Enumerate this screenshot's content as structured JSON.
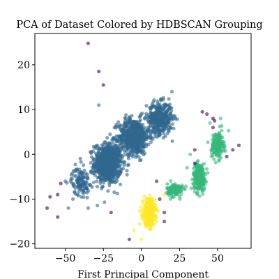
{
  "chart_data": {
    "type": "scatter",
    "title": "PCA of Dataset Colored by HDBSCAN Grouping",
    "xlabel": "First Principal Component",
    "ylabel": "",
    "xlim": [
      -70,
      72
    ],
    "ylim": [
      -21,
      27
    ],
    "xticks": [
      -50,
      -25,
      0,
      25,
      50
    ],
    "yticks": [
      -20,
      -10,
      0,
      10,
      20
    ],
    "grid": false,
    "legend": "none",
    "series": [
      {
        "color": "#31688e",
        "clusters": [
          {
            "center": [
              -22,
              -2
            ],
            "spread": [
              9,
              4.5
            ],
            "count": 700
          },
          {
            "center": [
              -5,
              4
            ],
            "spread": [
              10,
              4
            ],
            "count": 600
          },
          {
            "center": [
              12,
              8
            ],
            "spread": [
              8,
              3.5
            ],
            "count": 400
          },
          {
            "center": [
              -40,
              -6
            ],
            "spread": [
              6,
              3
            ],
            "count": 120
          }
        ],
        "points": [
          [
            -45,
            -10
          ],
          [
            -42,
            -9
          ],
          [
            -48,
            -12
          ],
          [
            -35,
            -12
          ],
          [
            -28,
            11
          ],
          [
            20,
            14
          ],
          [
            -50,
            -6
          ]
        ]
      },
      {
        "color": "#35b779",
        "clusters": [
          {
            "center": [
              22,
              -8
            ],
            "spread": [
              5,
              1.5
            ],
            "count": 150
          },
          {
            "center": [
              38,
              -5
            ],
            "spread": [
              4,
              3
            ],
            "count": 250
          },
          {
            "center": [
              50,
              2
            ],
            "spread": [
              4,
              3
            ],
            "count": 150
          }
        ],
        "points": [
          [
            45,
            7
          ],
          [
            52,
            8
          ],
          [
            32,
            0
          ],
          [
            30,
            -3
          ]
        ]
      },
      {
        "color": "#fde725",
        "clusters": [
          {
            "center": [
              5,
              -13
            ],
            "spread": [
              4,
              3
            ],
            "count": 350
          }
        ],
        "points": [
          [
            -5,
            -17
          ],
          [
            15,
            -9
          ],
          [
            0,
            -19
          ]
        ]
      },
      {
        "color": "#440154",
        "clusters": [],
        "points": [
          [
            -35,
            24.8
          ],
          [
            -28,
            18.5
          ],
          [
            -25,
            15.5
          ],
          [
            40,
            9.5
          ],
          [
            43,
            9
          ],
          [
            47,
            8
          ],
          [
            47,
            6
          ],
          [
            48,
            7.5
          ],
          [
            60,
            1
          ],
          [
            64,
            2
          ],
          [
            35,
            1
          ],
          [
            56,
            -0.5
          ],
          [
            35,
            -2
          ],
          [
            -60,
            -9.5
          ],
          [
            -55,
            -9
          ],
          [
            -53,
            -6.5
          ],
          [
            -62,
            -12
          ],
          [
            -55,
            -14
          ],
          [
            -8,
            -19
          ],
          [
            -20,
            -13
          ],
          [
            10,
            -6
          ],
          [
            15,
            -15
          ],
          [
            15,
            -13
          ],
          [
            12,
            -10
          ]
        ]
      }
    ]
  }
}
